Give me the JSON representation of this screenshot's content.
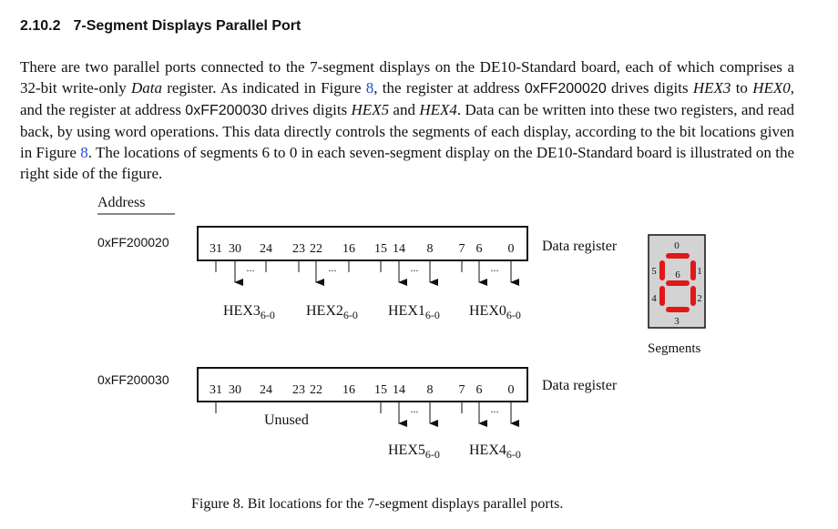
{
  "section": {
    "number": "2.10.2",
    "title": "7-Segment Displays Parallel Port"
  },
  "paragraph": {
    "p1": "There are two parallel ports connected to the 7-segment displays on the DE10-Standard board, each of which comprises a 32-bit write-only ",
    "p2": "Data",
    "p3": " register. As indicated in Figure ",
    "p4": "8",
    "p5": ", the register at address ",
    "p6": "0xFF200020",
    "p7": " drives digits ",
    "p8": "HEX3",
    "p9": " to ",
    "p10": "HEX0",
    "p11": ", and the register at address ",
    "p12": "0xFF200030",
    "p13": " drives digits ",
    "p14": "HEX5",
    "p15": " and ",
    "p16": "HEX4",
    "p17": ". Data can be written into these two registers, and read back, by using word operations. This data directly controls the segments of each display, according to the bit locations given in Figure ",
    "p18": "8",
    "p19": ". The locations of segments 6 to 0 in each seven-segment display on the DE10-Standard board is illustrated on the right side of the figure."
  },
  "figure": {
    "address_header": "Address",
    "address1": "0xFF200020",
    "address2": "0xFF200030",
    "bit_labels": [
      "31",
      "30",
      "24",
      "23",
      "22",
      "16",
      "15",
      "14",
      "8",
      "7",
      "6",
      "0"
    ],
    "data_register_label": "Data register",
    "ellipsis": "...",
    "reg1_fields": [
      {
        "name": "HEX3",
        "sub": "6-0"
      },
      {
        "name": "HEX2",
        "sub": "6-0"
      },
      {
        "name": "HEX1",
        "sub": "6-0"
      },
      {
        "name": "HEX0",
        "sub": "6-0"
      }
    ],
    "reg2_unused": "Unused",
    "reg2_fields": [
      {
        "name": "HEX5",
        "sub": "6-0"
      },
      {
        "name": "HEX4",
        "sub": "6-0"
      }
    ],
    "segment_numbers": [
      "0",
      "1",
      "2",
      "3",
      "4",
      "5",
      "6"
    ],
    "segments_label": "Segments",
    "caption": "Figure 8. Bit locations for the 7-segment displays parallel ports.",
    "colors": {
      "segment": "#e01818",
      "display_bg": "#d3d3d3"
    }
  }
}
